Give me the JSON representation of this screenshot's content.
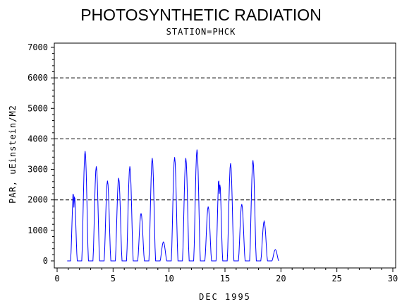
{
  "chart_data": {
    "type": "line",
    "title": "PHOTOSYNTHETIC RADIATION",
    "subtitle": "STATION=PHCK",
    "xlabel": "DEC 1995",
    "ylabel": "PAR, uEinstein/M2",
    "xlim": [
      0,
      30
    ],
    "ylim": [
      0,
      7000
    ],
    "x_ticks": [
      "0",
      "5",
      "10",
      "15",
      "20",
      "25",
      "30"
    ],
    "y_ticks": [
      "0",
      "1000",
      "2000",
      "3000",
      "4000",
      "5000",
      "6000",
      "7000"
    ],
    "reference_lines": [
      2000,
      4000,
      6000
    ],
    "series": [
      {
        "color": "#0000ff",
        "daily_peaks": [
          {
            "day": 1.5,
            "peaks": [
              2550,
              2400
            ],
            "dip": 1750
          },
          {
            "day": 2.5,
            "peaks": [
              3600
            ]
          },
          {
            "day": 3.5,
            "peaks": [
              3100
            ]
          },
          {
            "day": 4.5,
            "peaks": [
              2630
            ]
          },
          {
            "day": 5.5,
            "peaks": [
              2720
            ]
          },
          {
            "day": 6.5,
            "peaks": [
              3100
            ]
          },
          {
            "day": 7.5,
            "peaks": [
              1560
            ]
          },
          {
            "day": 8.5,
            "peaks": [
              3370
            ]
          },
          {
            "day": 9.5,
            "peaks": [
              620
            ]
          },
          {
            "day": 10.5,
            "peaks": [
              3400
            ]
          },
          {
            "day": 11.5,
            "peaks": [
              3370
            ]
          },
          {
            "day": 12.5,
            "peaks": [
              3650
            ]
          },
          {
            "day": 13.5,
            "peaks": [
              1780
            ]
          },
          {
            "day": 14.5,
            "peaks": [
              3030,
              2800
            ],
            "dip": 2200
          },
          {
            "day": 15.5,
            "peaks": [
              3200
            ]
          },
          {
            "day": 16.5,
            "peaks": [
              1860
            ]
          },
          {
            "day": 17.5,
            "peaks": [
              3300
            ]
          },
          {
            "day": 18.5,
            "peaks": [
              1300
            ]
          },
          {
            "day": 19.5,
            "peaks": [
              370
            ]
          }
        ]
      }
    ]
  }
}
